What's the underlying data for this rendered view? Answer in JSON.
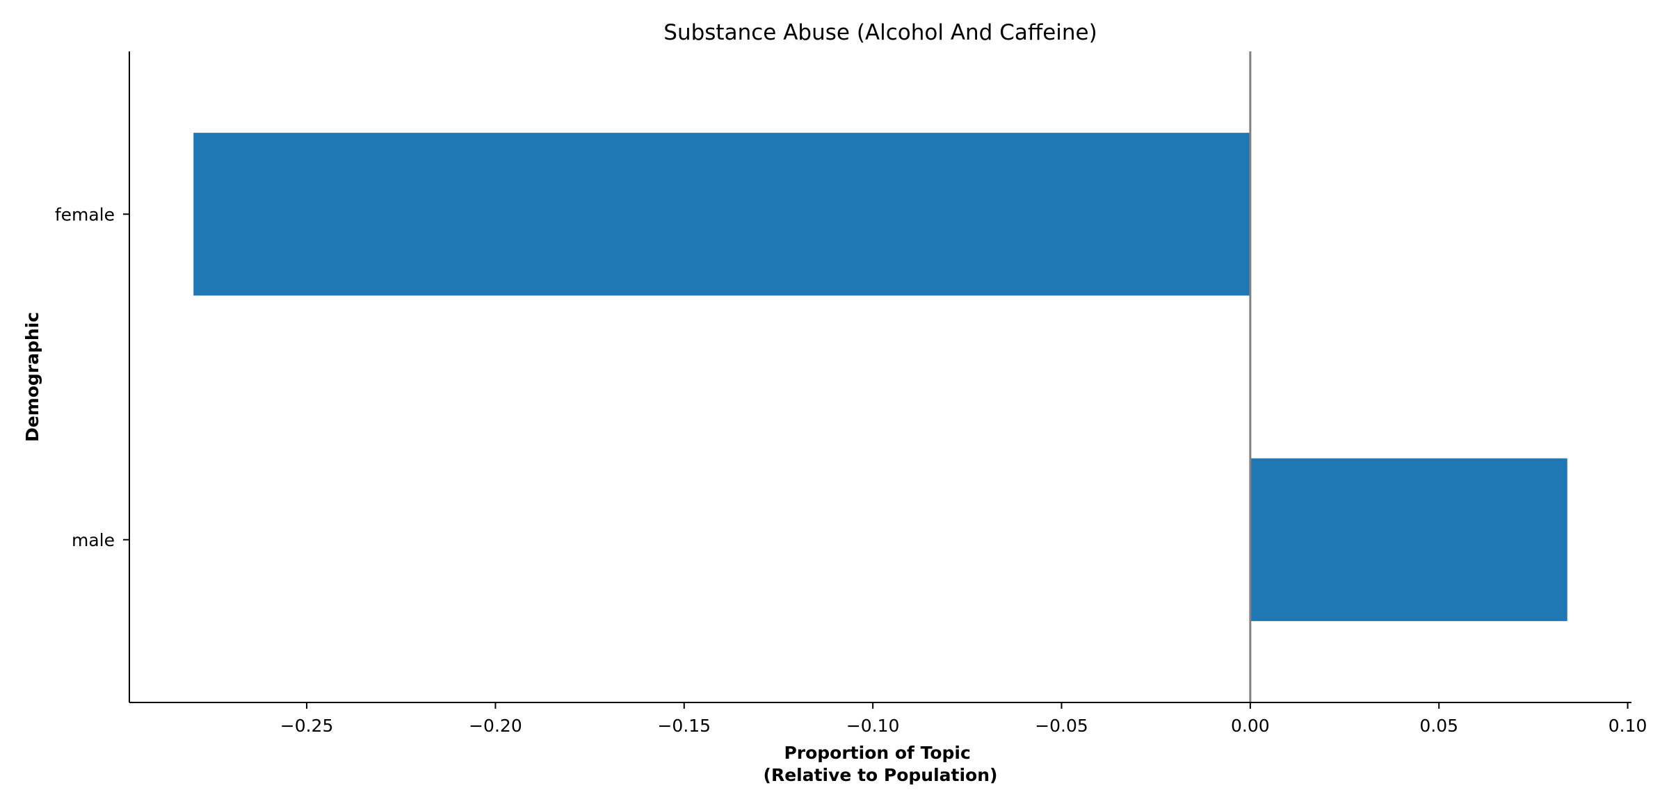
{
  "chart_data": {
    "type": "bar",
    "orientation": "horizontal",
    "title": "Substance Abuse (Alcohol And Caffeine)",
    "xlabel_lines": [
      "Proportion of Topic",
      "(Relative to Population)"
    ],
    "ylabel": "Demographic",
    "categories": [
      "female",
      "male"
    ],
    "values": [
      -0.28,
      0.084
    ],
    "xlim": [
      -0.297,
      0.101
    ],
    "xticks": [
      -0.25,
      -0.2,
      -0.15,
      -0.1,
      -0.05,
      0.0,
      0.05,
      0.1
    ],
    "xtick_labels": [
      "−0.25",
      "−0.20",
      "−0.15",
      "−0.10",
      "−0.05",
      "0.00",
      "0.05",
      "0.10"
    ],
    "reference_line_x": 0.0,
    "grid": false,
    "bar_color": "#1f77b4",
    "reference_line_color": "#808080",
    "spines": [
      "left",
      "bottom"
    ]
  }
}
